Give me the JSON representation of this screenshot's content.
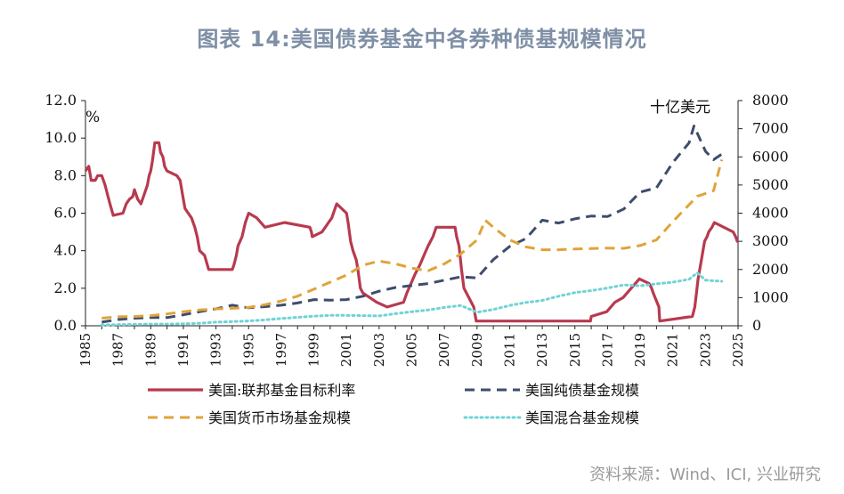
{
  "header": {
    "title": "图表 14:美国债券基金中各券种债基规模情况"
  },
  "footer": {
    "source": "资料来源：Wind、ICI, 兴业研究"
  },
  "colors": {
    "fed_rate": "#b83a4f",
    "bond": "#3d4d6b",
    "money": "#e0a33a",
    "hybrid": "#6fd3d6",
    "title": "#7f8fa6"
  },
  "chart_data": {
    "type": "line",
    "xlim": [
      1985,
      2025
    ],
    "x_ticks": [
      "1985",
      "1987",
      "1989",
      "1991",
      "1993",
      "1995",
      "1997",
      "1999",
      "2001",
      "2003",
      "2005",
      "2007",
      "2009",
      "2011",
      "2013",
      "2015",
      "2017",
      "2019",
      "2021",
      "2023",
      "2025"
    ],
    "y_left": {
      "unit": "%",
      "lim": [
        0,
        12
      ],
      "ticks": [
        "0.0",
        "2.0",
        "4.0",
        "6.0",
        "8.0",
        "10.0",
        "12.0"
      ]
    },
    "y_right": {
      "unit": "十亿美元",
      "lim": [
        0,
        8000
      ],
      "ticks": [
        "0",
        "1000",
        "2000",
        "3000",
        "4000",
        "5000",
        "6000",
        "7000",
        "8000"
      ]
    },
    "grid": false,
    "legend_position": "bottom",
    "series": [
      {
        "name": "美国:联邦基金目标利率",
        "axis": "left",
        "style": "solid",
        "points": [
          [
            1985.0,
            8.25
          ],
          [
            1985.2,
            8.5
          ],
          [
            1985.35,
            7.75
          ],
          [
            1985.6,
            7.75
          ],
          [
            1985.75,
            8.0
          ],
          [
            1986.0,
            8.0
          ],
          [
            1986.2,
            7.5
          ],
          [
            1986.35,
            7.0
          ],
          [
            1986.5,
            6.5
          ],
          [
            1986.7,
            5.88
          ],
          [
            1987.3,
            6.0
          ],
          [
            1987.5,
            6.5
          ],
          [
            1987.7,
            6.75
          ],
          [
            1987.9,
            6.88
          ],
          [
            1988.0,
            7.25
          ],
          [
            1988.2,
            6.75
          ],
          [
            1988.4,
            6.5
          ],
          [
            1988.6,
            7.0
          ],
          [
            1988.8,
            7.5
          ],
          [
            1988.9,
            8.0
          ],
          [
            1989.0,
            8.25
          ],
          [
            1989.1,
            8.75
          ],
          [
            1989.25,
            9.75
          ],
          [
            1989.5,
            9.75
          ],
          [
            1989.6,
            9.25
          ],
          [
            1989.75,
            9.0
          ],
          [
            1989.85,
            8.5
          ],
          [
            1990.0,
            8.25
          ],
          [
            1990.6,
            8.0
          ],
          [
            1990.8,
            7.75
          ],
          [
            1990.9,
            7.25
          ],
          [
            1991.0,
            6.75
          ],
          [
            1991.1,
            6.25
          ],
          [
            1991.3,
            6.0
          ],
          [
            1991.5,
            5.75
          ],
          [
            1991.7,
            5.25
          ],
          [
            1991.85,
            4.75
          ],
          [
            1992.0,
            4.0
          ],
          [
            1992.3,
            3.75
          ],
          [
            1992.55,
            3.0
          ],
          [
            1994.0,
            3.0
          ],
          [
            1994.1,
            3.25
          ],
          [
            1994.25,
            3.75
          ],
          [
            1994.35,
            4.25
          ],
          [
            1994.6,
            4.75
          ],
          [
            1994.8,
            5.5
          ],
          [
            1995.0,
            6.0
          ],
          [
            1995.5,
            5.75
          ],
          [
            1996.0,
            5.25
          ],
          [
            1997.2,
            5.5
          ],
          [
            1998.75,
            5.25
          ],
          [
            1998.85,
            5.0
          ],
          [
            1998.9,
            4.75
          ],
          [
            1999.5,
            5.0
          ],
          [
            1999.7,
            5.25
          ],
          [
            1999.9,
            5.5
          ],
          [
            2000.1,
            5.75
          ],
          [
            2000.2,
            6.0
          ],
          [
            2000.4,
            6.5
          ],
          [
            2001.0,
            6.0
          ],
          [
            2001.1,
            5.5
          ],
          [
            2001.25,
            4.5
          ],
          [
            2001.4,
            4.0
          ],
          [
            2001.6,
            3.5
          ],
          [
            2001.7,
            3.0
          ],
          [
            2001.85,
            2.0
          ],
          [
            2002.0,
            1.75
          ],
          [
            2002.85,
            1.25
          ],
          [
            2003.5,
            1.0
          ],
          [
            2004.5,
            1.25
          ],
          [
            2004.7,
            1.75
          ],
          [
            2004.95,
            2.25
          ],
          [
            2005.2,
            2.75
          ],
          [
            2005.5,
            3.25
          ],
          [
            2005.75,
            3.75
          ],
          [
            2006.0,
            4.25
          ],
          [
            2006.3,
            4.75
          ],
          [
            2006.5,
            5.25
          ],
          [
            2007.65,
            5.25
          ],
          [
            2007.75,
            4.75
          ],
          [
            2007.9,
            4.25
          ],
          [
            2008.05,
            3.0
          ],
          [
            2008.2,
            2.0
          ],
          [
            2008.8,
            1.0
          ],
          [
            2008.95,
            0.25
          ],
          [
            2015.95,
            0.25
          ],
          [
            2016.0,
            0.5
          ],
          [
            2016.95,
            0.75
          ],
          [
            2017.2,
            1.0
          ],
          [
            2017.45,
            1.25
          ],
          [
            2017.95,
            1.5
          ],
          [
            2018.2,
            1.75
          ],
          [
            2018.45,
            2.0
          ],
          [
            2018.7,
            2.25
          ],
          [
            2018.95,
            2.5
          ],
          [
            2019.55,
            2.25
          ],
          [
            2019.7,
            2.0
          ],
          [
            2019.8,
            1.75
          ],
          [
            2020.15,
            1.0
          ],
          [
            2020.2,
            0.25
          ],
          [
            2022.2,
            0.5
          ],
          [
            2022.35,
            1.0
          ],
          [
            2022.45,
            1.75
          ],
          [
            2022.55,
            2.5
          ],
          [
            2022.7,
            3.25
          ],
          [
            2022.85,
            4.0
          ],
          [
            2022.95,
            4.5
          ],
          [
            2023.1,
            4.75
          ],
          [
            2023.2,
            5.0
          ],
          [
            2023.4,
            5.25
          ],
          [
            2023.55,
            5.5
          ],
          [
            2024.7,
            5.0
          ],
          [
            2024.85,
            4.75
          ],
          [
            2024.95,
            4.5
          ],
          [
            2025.0,
            4.5
          ]
        ]
      },
      {
        "name": "美国纯债基金规模",
        "axis": "right",
        "style": "dash",
        "points": [
          [
            1986,
            130
          ],
          [
            1987,
            220
          ],
          [
            1988,
            270
          ],
          [
            1989,
            290
          ],
          [
            1990,
            290
          ],
          [
            1991,
            390
          ],
          [
            1992,
            500
          ],
          [
            1993,
            600
          ],
          [
            1994,
            730
          ],
          [
            1995,
            640
          ],
          [
            1996,
            680
          ],
          [
            1997,
            730
          ],
          [
            1998,
            810
          ],
          [
            1999,
            930
          ],
          [
            2000,
            910
          ],
          [
            2001,
            930
          ],
          [
            2002,
            1050
          ],
          [
            2003,
            1230
          ],
          [
            2004,
            1360
          ],
          [
            2005,
            1430
          ],
          [
            2006,
            1500
          ],
          [
            2007,
            1620
          ],
          [
            2008,
            1740
          ],
          [
            2009,
            1700
          ],
          [
            2010,
            2350
          ],
          [
            2011,
            2820
          ],
          [
            2012,
            3100
          ],
          [
            2013,
            3750
          ],
          [
            2014,
            3650
          ],
          [
            2015,
            3800
          ],
          [
            2016,
            3900
          ],
          [
            2017,
            3880
          ],
          [
            2018,
            4150
          ],
          [
            2019,
            4750
          ],
          [
            2020,
            4900
          ],
          [
            2021,
            5800
          ],
          [
            2022,
            6500
          ],
          [
            2022.3,
            7100
          ],
          [
            2023,
            6200
          ],
          [
            2023.5,
            5900
          ],
          [
            2024,
            6100
          ]
        ]
      },
      {
        "name": "美国货币市场基金规模",
        "axis": "right",
        "style": "dash",
        "points": [
          [
            1986,
            270
          ],
          [
            1987,
            320
          ],
          [
            1988,
            330
          ],
          [
            1989,
            360
          ],
          [
            1990,
            420
          ],
          [
            1991,
            500
          ],
          [
            1992,
            560
          ],
          [
            1993,
            600
          ],
          [
            1994,
            620
          ],
          [
            1995,
            650
          ],
          [
            1996,
            750
          ],
          [
            1997,
            880
          ],
          [
            1998,
            1050
          ],
          [
            1999,
            1300
          ],
          [
            2000,
            1550
          ],
          [
            2001,
            1800
          ],
          [
            2002,
            2150
          ],
          [
            2003,
            2300
          ],
          [
            2004,
            2200
          ],
          [
            2005,
            2050
          ],
          [
            2006,
            1950
          ],
          [
            2007,
            2200
          ],
          [
            2008,
            2550
          ],
          [
            2009,
            3050
          ],
          [
            2009.5,
            3750
          ],
          [
            2010,
            3500
          ],
          [
            2011,
            3050
          ],
          [
            2012,
            2800
          ],
          [
            2013,
            2700
          ],
          [
            2014,
            2700
          ],
          [
            2015,
            2730
          ],
          [
            2016,
            2740
          ],
          [
            2017,
            2760
          ],
          [
            2018,
            2750
          ],
          [
            2019,
            2850
          ],
          [
            2020,
            3050
          ],
          [
            2021,
            3700
          ],
          [
            2022,
            4300
          ],
          [
            2022.5,
            4600
          ],
          [
            2023,
            4700
          ],
          [
            2023.5,
            4800
          ],
          [
            2024,
            5900
          ]
        ]
      },
      {
        "name": "美国混合基金规模",
        "axis": "right",
        "style": "dot",
        "points": [
          [
            1986,
            30
          ],
          [
            1987,
            40
          ],
          [
            1988,
            50
          ],
          [
            1989,
            60
          ],
          [
            1990,
            60
          ],
          [
            1991,
            70
          ],
          [
            1992,
            90
          ],
          [
            1993,
            130
          ],
          [
            1994,
            150
          ],
          [
            1995,
            170
          ],
          [
            1996,
            210
          ],
          [
            1997,
            260
          ],
          [
            1998,
            300
          ],
          [
            1999,
            340
          ],
          [
            2000,
            370
          ],
          [
            2001,
            370
          ],
          [
            2002,
            360
          ],
          [
            2003,
            350
          ],
          [
            2004,
            430
          ],
          [
            2005,
            500
          ],
          [
            2006,
            560
          ],
          [
            2007,
            650
          ],
          [
            2008,
            720
          ],
          [
            2009,
            480
          ],
          [
            2010,
            580
          ],
          [
            2011,
            720
          ],
          [
            2012,
            830
          ],
          [
            2013,
            900
          ],
          [
            2014,
            1050
          ],
          [
            2015,
            1180
          ],
          [
            2016,
            1250
          ],
          [
            2017,
            1340
          ],
          [
            2018,
            1450
          ],
          [
            2019,
            1420
          ],
          [
            2020,
            1490
          ],
          [
            2021,
            1550
          ],
          [
            2022,
            1650
          ],
          [
            2022.5,
            1880
          ],
          [
            2023,
            1620
          ],
          [
            2024,
            1580
          ]
        ]
      }
    ]
  }
}
